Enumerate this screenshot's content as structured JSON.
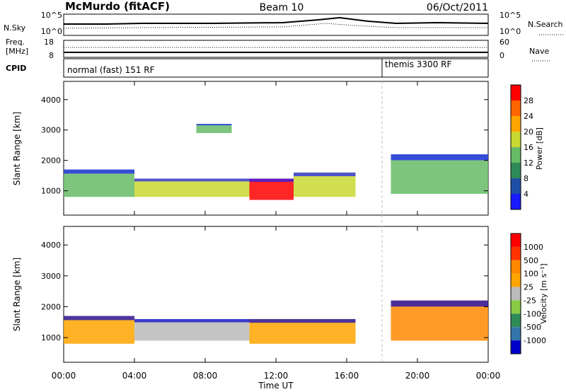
{
  "header": {
    "station": "McMurdo (fitACF)",
    "beam": "Beam 10",
    "date": "06/Oct/2011"
  },
  "colors": {
    "scale": [
      "#1a1aff",
      "#1f4fa8",
      "#2e8b57",
      "#66bb66",
      "#c8d830",
      "#ffa500",
      "#ff6600",
      "#ff0000"
    ],
    "velocity": [
      "#0000cc",
      "#3377aa",
      "#2e8b57",
      "#88cc44",
      "#bbbbbb",
      "#ffa500",
      "#ff8800",
      "#ff3300",
      "#ff0000"
    ]
  },
  "noise_panel": {
    "left_label": "N.Sky",
    "right_label": "N.Search",
    "left_ticks": [
      "10^5",
      "10^0"
    ],
    "right_ticks": [
      "10^5",
      "10^0"
    ]
  },
  "freq_panel": {
    "left_label_1": "Freq.",
    "left_label_2": "[MHz]",
    "right_label": "Nave",
    "left_ticks": [
      "18",
      "8"
    ],
    "right_ticks": [
      "60",
      "0"
    ]
  },
  "cpid_panel": {
    "label": "CPID",
    "segments": [
      {
        "label": "normal (fast) 151 RF",
        "start_ut": 0
      },
      {
        "label": "themis 3300 RF",
        "start_ut": 18
      }
    ]
  },
  "chart_data": [
    {
      "type": "heatmap",
      "name": "power",
      "ylabel": "Slant Range [km]",
      "ylim": [
        200,
        4600
      ],
      "yticks": [
        1000,
        2000,
        3000,
        4000
      ],
      "xlim": [
        0,
        24
      ],
      "colorbar": {
        "label": "Power [dB]",
        "ticks": [
          "4",
          "8",
          "12",
          "16",
          "20",
          "24",
          "28"
        ]
      },
      "bands": [
        {
          "t0": 0.0,
          "t1": 4.0,
          "range": [
            800,
            1700
          ],
          "level": 3
        },
        {
          "t0": 4.0,
          "t1": 10.5,
          "range": [
            800,
            1400
          ],
          "level": 4
        },
        {
          "t0": 10.5,
          "t1": 13.0,
          "range": [
            700,
            1400
          ],
          "level": 7
        },
        {
          "t0": 13.0,
          "t1": 16.5,
          "range": [
            800,
            1600
          ],
          "level": 4
        },
        {
          "t0": 7.5,
          "t1": 9.5,
          "range": [
            2900,
            3200
          ],
          "level": 3
        },
        {
          "t0": 18.5,
          "t1": 24.0,
          "range": [
            900,
            2200
          ],
          "level": 3
        }
      ]
    },
    {
      "type": "heatmap",
      "name": "velocity",
      "ylabel": "Slant Range [km]",
      "ylim": [
        200,
        4600
      ],
      "yticks": [
        1000,
        2000,
        3000,
        4000
      ],
      "xlim": [
        0,
        24
      ],
      "xticks": [
        "00:00",
        "04:00",
        "08:00",
        "12:00",
        "16:00",
        "20:00",
        "00:00"
      ],
      "xlabel": "Time UT",
      "colorbar": {
        "label": "Velocity [m s⁻¹]",
        "ticks": [
          "1000",
          "500",
          "100",
          "25",
          "-25",
          "-100",
          "-500",
          "-1000"
        ]
      },
      "bands": [
        {
          "t0": 0.0,
          "t1": 4.0,
          "range": [
            800,
            1700
          ],
          "level": 5
        },
        {
          "t0": 4.0,
          "t1": 10.5,
          "range": [
            900,
            1600
          ],
          "level": 4
        },
        {
          "t0": 10.5,
          "t1": 16.5,
          "range": [
            800,
            1600
          ],
          "level": 5
        },
        {
          "t0": 18.5,
          "t1": 24.0,
          "range": [
            900,
            2200
          ],
          "level": 6
        }
      ]
    }
  ],
  "mode_change_ut": 18
}
